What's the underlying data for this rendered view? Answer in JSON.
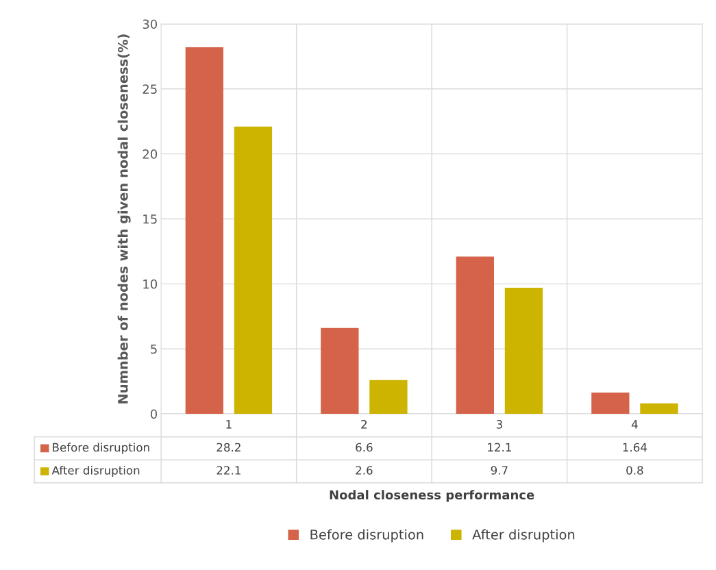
{
  "chart_data": {
    "type": "bar",
    "xlabel": "Nodal closeness performance",
    "ylabel": "Numnber of nodes with given nodal closeness(%)",
    "categories": [
      "1",
      "2",
      "3",
      "4"
    ],
    "series": [
      {
        "name": "Before disruption",
        "color": "#d4634a",
        "values": [
          28.2,
          6.6,
          12.1,
          1.64
        ]
      },
      {
        "name": "After disruption",
        "color": "#ccb400",
        "values": [
          22.1,
          2.6,
          9.7,
          0.8
        ]
      }
    ],
    "ylim": [
      0,
      30
    ],
    "yticks": [
      0,
      5,
      10,
      15,
      20,
      25,
      30
    ],
    "grid": true,
    "legend": "bottom",
    "data_labels": true
  }
}
